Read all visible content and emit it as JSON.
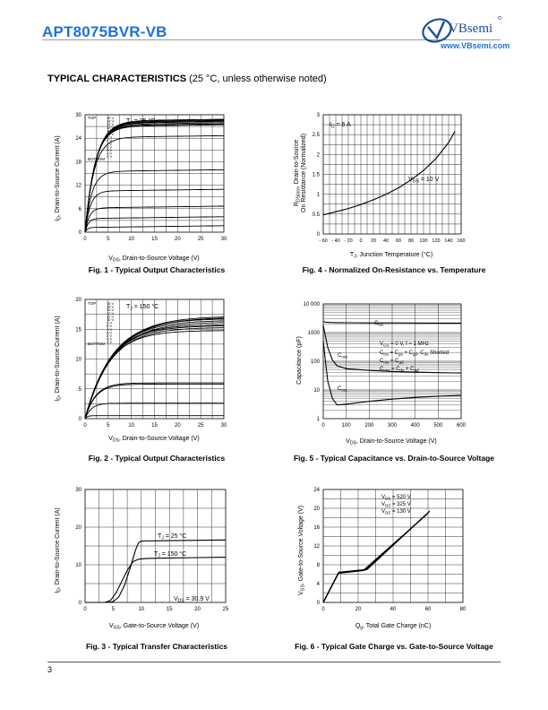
{
  "header": {
    "part_number": "APT8075BVR-VB",
    "logo_text": "VBsemi",
    "logo_url": "www.VBsemi.com"
  },
  "section": {
    "title_bold": "TYPICAL CHARACTERISTICS",
    "title_note": "(25 °C, unless otherwise noted)"
  },
  "footer": {
    "page_number": "3"
  },
  "colors": {
    "brand_blue": "#1f6fe0",
    "logo_navy": "#1a4c9a"
  },
  "chart_data": [
    {
      "id": "fig1",
      "type": "line",
      "caption": "Fig. 1 - Typical Output Characteristics",
      "xlabel": "VDS, Drain-to-Source Voltage (V)",
      "ylabel": "ID, Drain-to-Source Current (A)",
      "xlim": [
        0,
        30
      ],
      "ylim": [
        0,
        30
      ],
      "xticks": [
        "0",
        "5",
        "10",
        "15",
        "20",
        "25",
        "30"
      ],
      "yticks": [
        "0",
        "6",
        "12",
        "18",
        "24",
        "30"
      ],
      "legend_top": "TOP",
      "legend_bottom": "BOTTOM",
      "vgs_list": [
        "15 V",
        "14 V",
        "13 V",
        "12 V",
        "11 V",
        "10 V",
        "9 V",
        "8 V",
        "7 V",
        "6 V",
        "5 V",
        "4 V",
        "3 V"
      ],
      "annotation": "TJ = 25 °C",
      "series": [
        {
          "sat": 28.4,
          "knee": 5.0
        },
        {
          "sat": 28.2,
          "knee": 5.0
        },
        {
          "sat": 28.0,
          "knee": 5.0
        },
        {
          "sat": 27.8,
          "knee": 4.9
        },
        {
          "sat": 27.5,
          "knee": 4.8
        },
        {
          "sat": 27.2,
          "knee": 4.7
        },
        {
          "sat": 27.0,
          "knee": 4.6
        },
        {
          "sat": 24.2,
          "knee": 4.2
        },
        {
          "sat": 15.5,
          "knee": 3.2
        },
        {
          "sat": 10.5,
          "knee": 2.5
        },
        {
          "sat": 6.2,
          "knee": 2.0
        },
        {
          "sat": 3.5,
          "knee": 1.5
        },
        {
          "sat": 1.2,
          "knee": 1.0
        }
      ]
    },
    {
      "id": "fig2",
      "type": "line",
      "caption": "Fig. 2 - Typical Output Characteristics",
      "xlabel": "VDS, Drain-to-Source Voltage (V)",
      "ylabel": "ID, Drain-to-Source Current (A)",
      "xlim": [
        0,
        30
      ],
      "ylim": [
        0,
        20
      ],
      "xticks": [
        "0",
        "5",
        "10",
        "15",
        "20",
        "25",
        "30"
      ],
      "yticks": [
        "0",
        "5",
        "10",
        "15",
        "20"
      ],
      "legend_top": "TOP",
      "legend_bottom": "BOTTOM",
      "vgs_list": [
        "15 V",
        "14 V",
        "13 V",
        "12 V",
        "11 V",
        "10 V",
        "9 V",
        "8 V",
        "7 V",
        "6 V",
        "5 V",
        "4 V",
        "3 V"
      ],
      "annotation": "TJ = 150 °C",
      "series": [
        {
          "sat": 17.2,
          "knee": 14
        },
        {
          "sat": 17.0,
          "knee": 14
        },
        {
          "sat": 16.8,
          "knee": 13
        },
        {
          "sat": 16.5,
          "knee": 13
        },
        {
          "sat": 16.2,
          "knee": 13
        },
        {
          "sat": 15.8,
          "knee": 12
        },
        {
          "sat": 15.6,
          "knee": 12
        },
        {
          "sat": 15.3,
          "knee": 12
        },
        {
          "sat": 14.8,
          "knee": 11
        },
        {
          "sat": 6.0,
          "knee": 5
        },
        {
          "sat": 5.8,
          "knee": 5
        },
        {
          "sat": 2.6,
          "knee": 3
        },
        {
          "sat": 0.5,
          "knee": 1
        }
      ]
    },
    {
      "id": "fig3",
      "type": "line",
      "caption": "Fig. 3 - Typical Transfer Characteristics",
      "xlabel": "VGS, Gate-to-Source Voltage (V)",
      "ylabel": "ID, Drain-to-Source Current (A)",
      "xlim": [
        0,
        25
      ],
      "ylim": [
        0,
        30
      ],
      "xticks": [
        "0",
        "5",
        "10",
        "15",
        "20",
        "25"
      ],
      "yticks": [
        "0",
        "10",
        "20",
        "30"
      ],
      "annotations": [
        "TJ = 25 °C",
        "TJ = 150 °C",
        "VDS = 30.9 V"
      ],
      "series": [
        {
          "name": "TJ = 25 °C",
          "x": [
            0,
            4,
            5,
            6,
            7,
            8,
            9,
            9.5,
            10,
            15,
            20,
            25
          ],
          "y": [
            0,
            0,
            0.2,
            1.5,
            4.5,
            9,
            14,
            15.8,
            16.3,
            16.4,
            16.5,
            16.6
          ]
        },
        {
          "name": "TJ = 150 °C",
          "x": [
            0,
            3.5,
            4.5,
            5.5,
            6.5,
            7.5,
            8.5,
            9.5,
            11,
            15,
            20,
            25
          ],
          "y": [
            0,
            0,
            0.5,
            2.5,
            5.5,
            8.5,
            10.8,
            11.5,
            11.7,
            11.8,
            11.9,
            12.0
          ]
        }
      ]
    },
    {
      "id": "fig4",
      "type": "line",
      "caption": "Fig. 4 - Normalized On-Resistance vs. Temperature",
      "xlabel": "TJ, Junction Temperature (°C)",
      "ylabel": "RDS(on), Drain-to-Source On Resistance (Normalized)",
      "xlim": [
        -60,
        160
      ],
      "ylim": [
        0,
        3
      ],
      "xticks": [
        "- 60",
        "- 40",
        "- 20",
        "0",
        "20",
        "40",
        "60",
        "80",
        "100",
        "120",
        "140",
        "160"
      ],
      "yticks": [
        "0",
        "0.5",
        "1",
        "1.5",
        "2",
        "2.5",
        "3"
      ],
      "annotations": [
        "ID = 6 A",
        "VGS = 10 V"
      ],
      "series": [
        {
          "x": [
            -60,
            -40,
            -20,
            0,
            20,
            40,
            60,
            80,
            100,
            120,
            140,
            150
          ],
          "y": [
            0.48,
            0.56,
            0.64,
            0.74,
            0.86,
            1.0,
            1.16,
            1.36,
            1.6,
            1.9,
            2.3,
            2.58
          ]
        }
      ]
    },
    {
      "id": "fig5",
      "type": "line",
      "caption": "Fig. 5 - Typical Capacitance vs. Drain-to-Source Voltage",
      "xlabel": "VDS, Drain-to-Source Voltage (V)",
      "ylabel": "Capacitance (pF)",
      "xlim": [
        0,
        600
      ],
      "ylim": [
        1,
        10000
      ],
      "yscale": "log",
      "xticks": [
        "0",
        "100",
        "200",
        "300",
        "400",
        "500",
        "600"
      ],
      "yticks": [
        "1",
        "10",
        "100",
        "1000",
        "10 000"
      ],
      "annotations": [
        "Ciss",
        "Coss",
        "Crss",
        "VGS = 0 V, f = 1 MHz",
        "Ciss = Cgs + Cgd, Cds Shorted",
        "Crss = Cgd",
        "Coss = Cds + Cgd"
      ],
      "series": [
        {
          "name": "Ciss",
          "x": [
            0,
            10,
            30,
            60,
            100,
            200,
            300,
            400,
            500,
            600
          ],
          "y": [
            2400,
            2300,
            2250,
            2220,
            2200,
            2180,
            2170,
            2160,
            2150,
            2140
          ]
        },
        {
          "name": "Coss",
          "x": [
            0,
            10,
            20,
            40,
            60,
            100,
            200,
            300,
            400,
            500,
            600
          ],
          "y": [
            1800,
            700,
            300,
            110,
            70,
            55,
            48,
            44,
            42,
            40,
            39
          ]
        },
        {
          "name": "Crss",
          "x": [
            0,
            10,
            20,
            40,
            60,
            100,
            200,
            300,
            400,
            500,
            600
          ],
          "y": [
            500,
            90,
            20,
            5,
            3,
            3.2,
            4,
            4.8,
            5.5,
            6,
            6.5
          ]
        }
      ]
    },
    {
      "id": "fig6",
      "type": "line",
      "caption": "Fig. 6 - Typical Gate Charge vs. Gate-to-Source Voltage",
      "xlabel": "Qg, Total Gate Charge (nC)",
      "ylabel": "VGS, Gate-to-Source Voltage (V)",
      "xlim": [
        0,
        80
      ],
      "ylim": [
        0,
        24
      ],
      "xticks": [
        "0",
        "20",
        "40",
        "60",
        "80"
      ],
      "yticks": [
        "0",
        "4",
        "8",
        "12",
        "16",
        "20",
        "24"
      ],
      "annotations": [
        "VDS = 520 V",
        "VDS = 325 V",
        "VDS = 130 V"
      ],
      "series": [
        {
          "name": "VDS = 520 V",
          "x": [
            0,
            9,
            25,
            61
          ],
          "y": [
            0,
            6.4,
            7.0,
            19.4
          ]
        },
        {
          "name": "VDS = 325 V",
          "x": [
            0,
            8.8,
            24,
            60
          ],
          "y": [
            0,
            6.3,
            6.9,
            19.0
          ]
        },
        {
          "name": "VDS = 130 V",
          "x": [
            0,
            8.6,
            23,
            59
          ],
          "y": [
            0,
            6.2,
            6.8,
            18.6
          ]
        }
      ]
    }
  ]
}
